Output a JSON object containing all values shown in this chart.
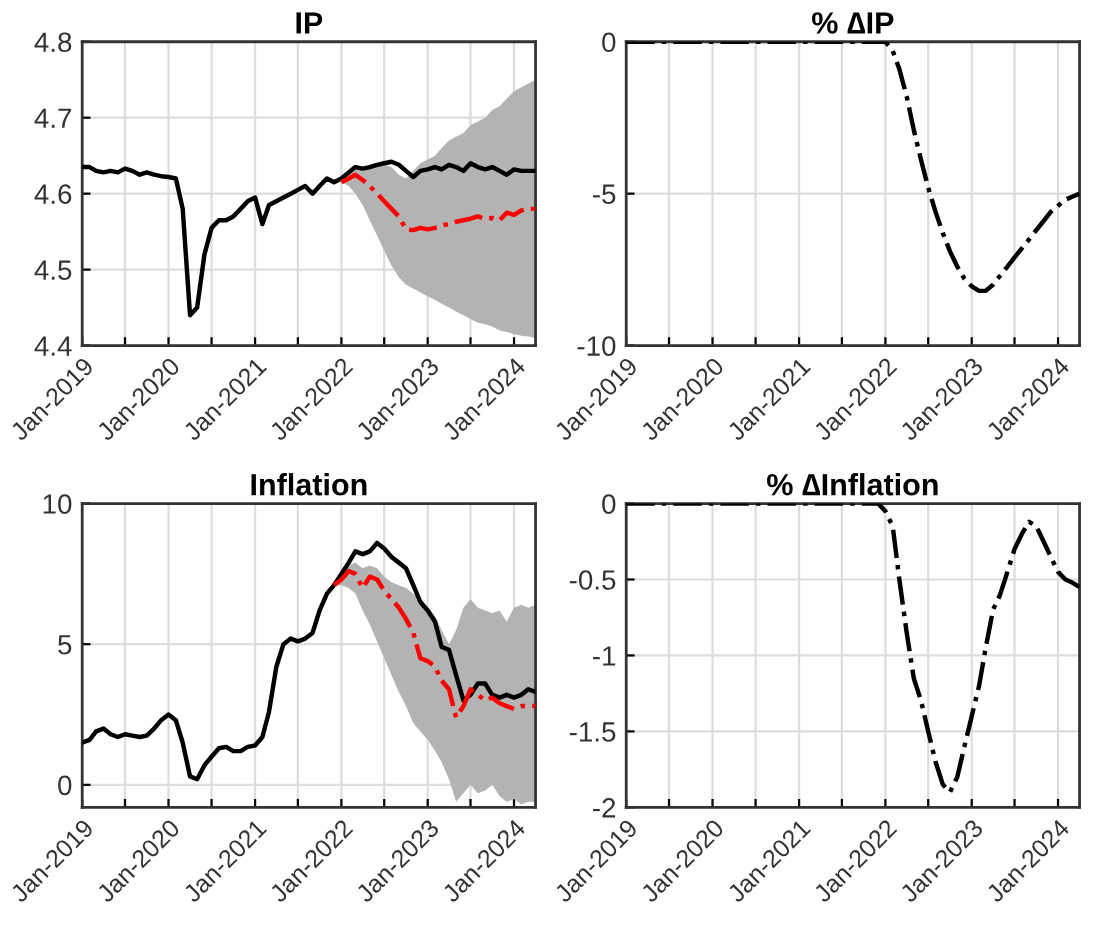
{
  "chart_data": [
    {
      "type": "line",
      "title": "IP",
      "grid": true,
      "xlim": [
        "2019-01",
        "2024-04"
      ],
      "ylim": [
        4.4,
        4.8
      ],
      "yticks": [
        4.4,
        4.5,
        4.6,
        4.7,
        4.8
      ],
      "xticks": [
        {
          "value": "2019-01",
          "label": "Jan-2019"
        },
        {
          "value": "2019-07",
          "label": null
        },
        {
          "value": "2020-01",
          "label": "Jan-2020"
        },
        {
          "value": "2020-07",
          "label": null
        },
        {
          "value": "2021-01",
          "label": "Jan-2021"
        },
        {
          "value": "2021-07",
          "label": null
        },
        {
          "value": "2022-01",
          "label": "Jan-2022"
        },
        {
          "value": "2022-07",
          "label": null
        },
        {
          "value": "2023-01",
          "label": "Jan-2023"
        },
        {
          "value": "2023-07",
          "label": null
        },
        {
          "value": "2024-01",
          "label": "Jan-2024"
        }
      ],
      "x": [
        "2019-01",
        "2019-02",
        "2019-03",
        "2019-04",
        "2019-05",
        "2019-06",
        "2019-07",
        "2019-08",
        "2019-09",
        "2019-10",
        "2019-11",
        "2019-12",
        "2020-01",
        "2020-02",
        "2020-03",
        "2020-04",
        "2020-05",
        "2020-06",
        "2020-07",
        "2020-08",
        "2020-09",
        "2020-10",
        "2020-11",
        "2020-12",
        "2021-01",
        "2021-02",
        "2021-03",
        "2021-04",
        "2021-05",
        "2021-06",
        "2021-07",
        "2021-08",
        "2021-09",
        "2021-10",
        "2021-11",
        "2021-12",
        "2022-01",
        "2022-02",
        "2022-03",
        "2022-04",
        "2022-05",
        "2022-06",
        "2022-07",
        "2022-08",
        "2022-09",
        "2022-10",
        "2022-11",
        "2022-12",
        "2023-01",
        "2023-02",
        "2023-03",
        "2023-04",
        "2023-05",
        "2023-06",
        "2023-07",
        "2023-08",
        "2023-09",
        "2023-10",
        "2023-11",
        "2023-12",
        "2024-01",
        "2024-02",
        "2024-03",
        "2024-04"
      ],
      "series": [
        {
          "color": "#000000",
          "line_style": "solid",
          "values": [
            4.635,
            4.635,
            4.63,
            4.628,
            4.63,
            4.628,
            4.633,
            4.63,
            4.625,
            4.628,
            4.625,
            4.623,
            4.622,
            4.62,
            4.58,
            4.44,
            4.45,
            4.52,
            4.555,
            4.565,
            4.565,
            4.57,
            4.58,
            4.59,
            4.595,
            4.56,
            4.585,
            4.59,
            4.595,
            4.6,
            4.605,
            4.61,
            4.6,
            4.61,
            4.62,
            4.615,
            4.62,
            4.628,
            4.635,
            4.633,
            4.635,
            4.638,
            4.64,
            4.642,
            4.638,
            4.63,
            4.622,
            4.63,
            4.632,
            4.635,
            4.632,
            4.638,
            4.635,
            4.63,
            4.64,
            4.635,
            4.632,
            4.635,
            4.63,
            4.625,
            4.632,
            4.63,
            4.63,
            4.63
          ]
        },
        {
          "color": "#ff0000",
          "line_style": "dashed",
          "x": [
            "2022-01",
            "2022-02",
            "2022-03",
            "2022-04",
            "2022-05",
            "2022-06",
            "2022-07",
            "2022-08",
            "2022-09",
            "2022-10",
            "2022-11",
            "2022-12",
            "2023-01",
            "2023-02",
            "2023-03",
            "2023-04",
            "2023-05",
            "2023-06",
            "2023-07",
            "2023-08",
            "2023-09",
            "2023-10",
            "2023-11",
            "2023-12",
            "2024-01",
            "2024-02",
            "2024-03",
            "2024-04"
          ],
          "values": [
            4.615,
            4.62,
            4.625,
            4.618,
            4.61,
            4.6,
            4.59,
            4.58,
            4.57,
            4.553,
            4.552,
            4.555,
            4.553,
            4.555,
            4.558,
            4.56,
            4.563,
            4.565,
            4.567,
            4.57,
            4.567,
            4.568,
            4.565,
            4.575,
            4.572,
            4.578,
            4.58,
            4.58
          ],
          "lower": [
            4.615,
            4.61,
            4.6,
            4.585,
            4.565,
            4.545,
            4.525,
            4.505,
            4.49,
            4.48,
            4.475,
            4.47,
            4.465,
            4.46,
            4.455,
            4.45,
            4.445,
            4.44,
            4.435,
            4.43,
            4.428,
            4.425,
            4.42,
            4.418,
            4.415,
            4.413,
            4.412,
            4.41
          ],
          "upper": [
            4.62,
            4.628,
            4.633,
            4.635,
            4.637,
            4.638,
            4.638,
            4.635,
            4.625,
            4.62,
            4.63,
            4.64,
            4.645,
            4.65,
            4.66,
            4.67,
            4.675,
            4.68,
            4.69,
            4.695,
            4.7,
            4.71,
            4.715,
            4.725,
            4.735,
            4.74,
            4.745,
            4.75
          ]
        }
      ]
    },
    {
      "type": "line",
      "title": "% ∆IP",
      "grid": true,
      "xlim": [
        "2019-01",
        "2024-04"
      ],
      "ylim": [
        -10,
        0
      ],
      "yticks": [
        -10,
        -5,
        0
      ],
      "xticks": [
        {
          "value": "2019-01",
          "label": "Jan-2019"
        },
        {
          "value": "2019-07",
          "label": null
        },
        {
          "value": "2020-01",
          "label": "Jan-2020"
        },
        {
          "value": "2020-07",
          "label": null
        },
        {
          "value": "2021-01",
          "label": "Jan-2021"
        },
        {
          "value": "2021-07",
          "label": null
        },
        {
          "value": "2022-01",
          "label": "Jan-2022"
        },
        {
          "value": "2022-07",
          "label": null
        },
        {
          "value": "2023-01",
          "label": "Jan-2023"
        },
        {
          "value": "2023-07",
          "label": null
        },
        {
          "value": "2024-01",
          "label": "Jan-2024"
        }
      ],
      "x": [
        "2019-01",
        "2019-02",
        "2019-03",
        "2019-04",
        "2019-05",
        "2019-06",
        "2019-07",
        "2019-08",
        "2019-09",
        "2019-10",
        "2019-11",
        "2019-12",
        "2020-01",
        "2020-02",
        "2020-03",
        "2020-04",
        "2020-05",
        "2020-06",
        "2020-07",
        "2020-08",
        "2020-09",
        "2020-10",
        "2020-11",
        "2020-12",
        "2021-01",
        "2021-02",
        "2021-03",
        "2021-04",
        "2021-05",
        "2021-06",
        "2021-07",
        "2021-08",
        "2021-09",
        "2021-10",
        "2021-11",
        "2021-12",
        "2022-01",
        "2022-02",
        "2022-03",
        "2022-04",
        "2022-05",
        "2022-06",
        "2022-07",
        "2022-08",
        "2022-09",
        "2022-10",
        "2022-11",
        "2022-12",
        "2023-01",
        "2023-02",
        "2023-03",
        "2023-04",
        "2023-05",
        "2023-06",
        "2023-07",
        "2023-08",
        "2023-09",
        "2023-10",
        "2023-11",
        "2023-12",
        "2024-01",
        "2024-02",
        "2024-03",
        "2024-04"
      ],
      "series": [
        {
          "color": "#000000",
          "line_style": "dashed",
          "values": [
            0,
            0,
            0,
            0,
            0,
            0,
            0,
            0,
            0,
            0,
            0,
            0,
            0,
            0,
            0,
            0,
            0,
            0,
            0,
            0,
            0,
            0,
            0,
            0,
            0,
            0,
            0,
            0,
            0,
            0,
            0,
            0,
            0,
            0,
            0,
            0,
            0,
            -0.3,
            -0.9,
            -1.8,
            -2.9,
            -3.9,
            -4.8,
            -5.6,
            -6.3,
            -6.9,
            -7.4,
            -7.8,
            -8.05,
            -8.2,
            -8.2,
            -8.0,
            -7.7,
            -7.4,
            -7.1,
            -6.8,
            -6.5,
            -6.2,
            -5.9,
            -5.6,
            -5.4,
            -5.2,
            -5.1,
            -5.0
          ]
        }
      ]
    },
    {
      "type": "line",
      "title": "Inflation",
      "grid": true,
      "xlim": [
        "2019-01",
        "2024-04"
      ],
      "ylim": [
        -0.8,
        10
      ],
      "yticks": [
        0,
        5,
        10
      ],
      "xticks": [
        {
          "value": "2019-01",
          "label": "Jan-2019"
        },
        {
          "value": "2019-07",
          "label": null
        },
        {
          "value": "2020-01",
          "label": "Jan-2020"
        },
        {
          "value": "2020-07",
          "label": null
        },
        {
          "value": "2021-01",
          "label": "Jan-2021"
        },
        {
          "value": "2021-07",
          "label": null
        },
        {
          "value": "2022-01",
          "label": "Jan-2022"
        },
        {
          "value": "2022-07",
          "label": null
        },
        {
          "value": "2023-01",
          "label": "Jan-2023"
        },
        {
          "value": "2023-07",
          "label": null
        },
        {
          "value": "2024-01",
          "label": "Jan-2024"
        }
      ],
      "x": [
        "2019-01",
        "2019-02",
        "2019-03",
        "2019-04",
        "2019-05",
        "2019-06",
        "2019-07",
        "2019-08",
        "2019-09",
        "2019-10",
        "2019-11",
        "2019-12",
        "2020-01",
        "2020-02",
        "2020-03",
        "2020-04",
        "2020-05",
        "2020-06",
        "2020-07",
        "2020-08",
        "2020-09",
        "2020-10",
        "2020-11",
        "2020-12",
        "2021-01",
        "2021-02",
        "2021-03",
        "2021-04",
        "2021-05",
        "2021-06",
        "2021-07",
        "2021-08",
        "2021-09",
        "2021-10",
        "2021-11",
        "2021-12",
        "2022-01",
        "2022-02",
        "2022-03",
        "2022-04",
        "2022-05",
        "2022-06",
        "2022-07",
        "2022-08",
        "2022-09",
        "2022-10",
        "2022-11",
        "2022-12",
        "2023-01",
        "2023-02",
        "2023-03",
        "2023-04",
        "2023-05",
        "2023-06",
        "2023-07",
        "2023-08",
        "2023-09",
        "2023-10",
        "2023-11",
        "2023-12",
        "2024-01",
        "2024-02",
        "2024-03",
        "2024-04"
      ],
      "series": [
        {
          "color": "#000000",
          "line_style": "solid",
          "values": [
            1.5,
            1.6,
            1.9,
            2.0,
            1.8,
            1.7,
            1.8,
            1.75,
            1.7,
            1.75,
            2.0,
            2.3,
            2.5,
            2.3,
            1.5,
            0.3,
            0.2,
            0.7,
            1.0,
            1.3,
            1.35,
            1.2,
            1.2,
            1.35,
            1.4,
            1.7,
            2.6,
            4.2,
            5.0,
            5.2,
            5.1,
            5.2,
            5.4,
            6.2,
            6.8,
            7.1,
            7.5,
            7.9,
            8.3,
            8.2,
            8.3,
            8.6,
            8.4,
            8.1,
            7.9,
            7.7,
            7.1,
            6.5,
            6.2,
            5.8,
            4.9,
            4.8,
            3.9,
            3.0,
            3.2,
            3.6,
            3.6,
            3.2,
            3.1,
            3.2,
            3.1,
            3.2,
            3.4,
            3.3
          ]
        },
        {
          "color": "#ff0000",
          "line_style": "dashed",
          "x": [
            "2021-12",
            "2022-01",
            "2022-02",
            "2022-03",
            "2022-04",
            "2022-05",
            "2022-06",
            "2022-07",
            "2022-08",
            "2022-09",
            "2022-10",
            "2022-11",
            "2022-12",
            "2023-01",
            "2023-02",
            "2023-03",
            "2023-04",
            "2023-05",
            "2023-06",
            "2023-07",
            "2023-08",
            "2023-09",
            "2023-10",
            "2023-11",
            "2023-12",
            "2024-01",
            "2024-02",
            "2024-03",
            "2024-04"
          ],
          "values": [
            7.1,
            7.3,
            7.6,
            7.5,
            7.0,
            7.4,
            7.3,
            6.9,
            6.6,
            6.3,
            5.9,
            5.4,
            4.5,
            4.4,
            4.2,
            3.7,
            3.4,
            2.4,
            2.8,
            3.4,
            3.2,
            3.0,
            3.1,
            2.9,
            2.8,
            2.7,
            2.8,
            2.8,
            2.8
          ],
          "lower": [
            7.1,
            7.1,
            7.0,
            6.8,
            6.2,
            5.7,
            5.1,
            4.5,
            3.9,
            3.3,
            2.8,
            2.2,
            1.9,
            1.6,
            1.2,
            0.8,
            0.2,
            -0.6,
            -0.3,
            0.0,
            -0.3,
            -0.2,
            0.0,
            -0.4,
            -0.6,
            -0.5,
            -0.7,
            -0.6,
            -0.6
          ],
          "upper": [
            7.1,
            7.6,
            7.8,
            7.9,
            7.7,
            7.8,
            7.7,
            7.4,
            7.2,
            7.1,
            7.0,
            6.8,
            6.6,
            6.3,
            6.0,
            5.5,
            5.0,
            5.5,
            6.3,
            6.6,
            6.3,
            6.2,
            6.1,
            6.2,
            5.8,
            6.3,
            6.4,
            6.3,
            6.4
          ]
        }
      ]
    },
    {
      "type": "line",
      "title": "% ∆Inflation",
      "grid": true,
      "xlim": [
        "2019-01",
        "2024-04"
      ],
      "ylim": [
        -2,
        0
      ],
      "yticks": [
        -2,
        -1.5,
        -1,
        -0.5,
        0
      ],
      "xticks": [
        {
          "value": "2019-01",
          "label": "Jan-2019"
        },
        {
          "value": "2019-07",
          "label": null
        },
        {
          "value": "2020-01",
          "label": "Jan-2020"
        },
        {
          "value": "2020-07",
          "label": null
        },
        {
          "value": "2021-01",
          "label": "Jan-2021"
        },
        {
          "value": "2021-07",
          "label": null
        },
        {
          "value": "2022-01",
          "label": "Jan-2022"
        },
        {
          "value": "2022-07",
          "label": null
        },
        {
          "value": "2023-01",
          "label": "Jan-2023"
        },
        {
          "value": "2023-07",
          "label": null
        },
        {
          "value": "2024-01",
          "label": "Jan-2024"
        }
      ],
      "x": [
        "2019-01",
        "2019-02",
        "2019-03",
        "2019-04",
        "2019-05",
        "2019-06",
        "2019-07",
        "2019-08",
        "2019-09",
        "2019-10",
        "2019-11",
        "2019-12",
        "2020-01",
        "2020-02",
        "2020-03",
        "2020-04",
        "2020-05",
        "2020-06",
        "2020-07",
        "2020-08",
        "2020-09",
        "2020-10",
        "2020-11",
        "2020-12",
        "2021-01",
        "2021-02",
        "2021-03",
        "2021-04",
        "2021-05",
        "2021-06",
        "2021-07",
        "2021-08",
        "2021-09",
        "2021-10",
        "2021-11",
        "2021-12",
        "2022-01",
        "2022-02",
        "2022-03",
        "2022-04",
        "2022-05",
        "2022-06",
        "2022-07",
        "2022-08",
        "2022-09",
        "2022-10",
        "2022-11",
        "2022-12",
        "2023-01",
        "2023-02",
        "2023-03",
        "2023-04",
        "2023-05",
        "2023-06",
        "2023-07",
        "2023-08",
        "2023-09",
        "2023-10",
        "2023-11",
        "2023-12",
        "2024-01",
        "2024-02",
        "2024-03",
        "2024-04"
      ],
      "series": [
        {
          "color": "#000000",
          "line_style": "dashed",
          "values": [
            0,
            0,
            0,
            0,
            0,
            0,
            0,
            0,
            0,
            0,
            0,
            0,
            0,
            0,
            0,
            0,
            0,
            0,
            0,
            0,
            0,
            0,
            0,
            0,
            0,
            0,
            0,
            0,
            0,
            0,
            0,
            0,
            0,
            0,
            0,
            0,
            -0.05,
            -0.15,
            -0.5,
            -0.85,
            -1.15,
            -1.3,
            -1.5,
            -1.7,
            -1.85,
            -1.9,
            -1.8,
            -1.6,
            -1.4,
            -1.2,
            -0.95,
            -0.7,
            -0.6,
            -0.45,
            -0.3,
            -0.2,
            -0.12,
            -0.15,
            -0.25,
            -0.35,
            -0.45,
            -0.5,
            -0.52,
            -0.55
          ]
        }
      ]
    }
  ]
}
